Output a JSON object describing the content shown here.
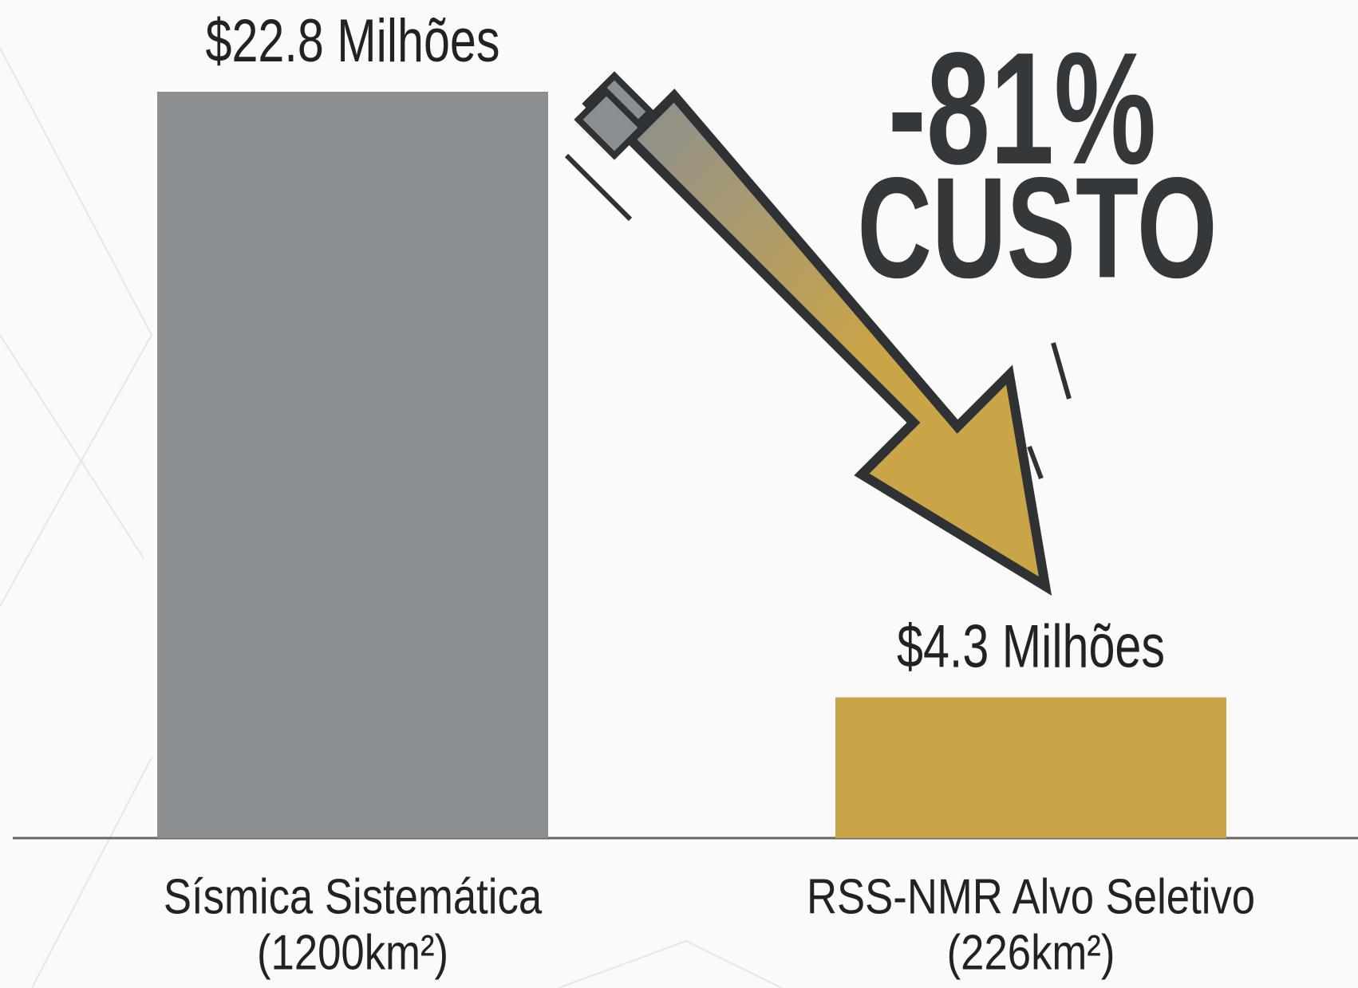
{
  "chart_data": {
    "type": "bar",
    "categories": [
      [
        "Sísmica Sistemática",
        "(1200km²)"
      ],
      [
        "RSS-NMR Alvo Seletivo",
        "(226km²)"
      ]
    ],
    "values": [
      22.8,
      4.3
    ],
    "value_labels": [
      "$22.8 Milhões",
      "$4.3 Milhões"
    ],
    "colors": [
      "#8c8f92",
      "#c9a548"
    ],
    "annotations": [
      "-81%",
      "CUSTO"
    ]
  }
}
